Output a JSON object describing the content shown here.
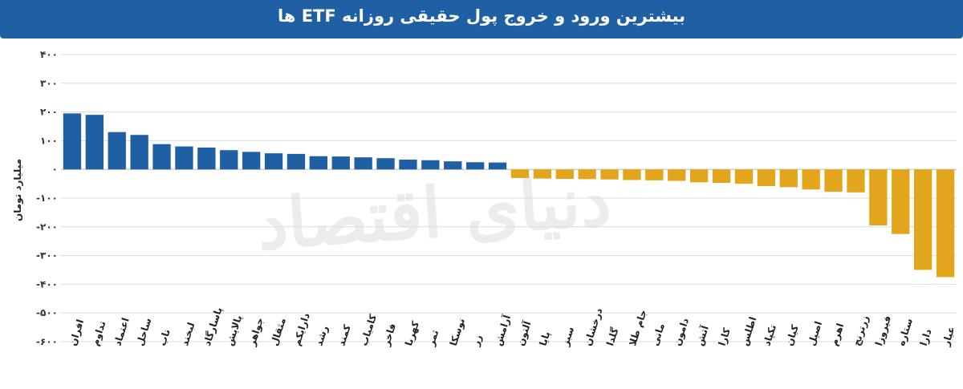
{
  "header": {
    "title": "بیشترین ورود و خروج پول حقیقی روزانه ETF ها"
  },
  "watermark": "دنیای اقتصاد",
  "colors": {
    "header_bg": "#1f5fa3",
    "inflow": "#1f5fa3",
    "outflow": "#e2a51c"
  },
  "chart_data": {
    "type": "bar",
    "title": "بیشترین ورود و خروج پول حقیقی روزانه ETF ها",
    "ylabel": "میلیارد تومان",
    "xlabel": "",
    "ylim": [
      -600,
      400
    ],
    "yticks": [
      400,
      300,
      200,
      100,
      0,
      -100,
      -200,
      -300,
      -400,
      -500,
      -600
    ],
    "ytick_labels": [
      "۴۰۰",
      "۳۰۰",
      "۲۰۰",
      "۱۰۰",
      "۰",
      "-۱۰۰",
      "-۲۰۰",
      "-۳۰۰",
      "-۴۰۰",
      "-۵۰۰",
      "-۶۰۰"
    ],
    "grid": true,
    "categories": [
      "افران",
      "تداوم",
      "اعتماد",
      "ساحل",
      "ناب",
      "لبخند",
      "پاسارگاد",
      "پالایش",
      "جواهر",
      "مثقال",
      "دارایکم",
      "رشد",
      "کمند",
      "کامیاب",
      "فاخر",
      "کهربا",
      "ثمر",
      "نوسکا",
      "زر",
      "آرامش",
      "آلتون",
      "پایا",
      "سبز",
      "درخشان",
      "گلدا",
      "جام طلا",
      "مانی",
      "دامون",
      "آتش",
      "کارا",
      "اطلس",
      "تکپاد",
      "کیان",
      "اصیل",
      "اهرم",
      "زرترنج",
      "فیروزا",
      "ستاره",
      "دارا",
      "عیار"
    ],
    "values": [
      195,
      190,
      130,
      120,
      88,
      80,
      76,
      67,
      61,
      56,
      54,
      46,
      45,
      42,
      39,
      34,
      32,
      28,
      25,
      24,
      -30,
      -32,
      -33,
      -34,
      -35,
      -37,
      -38,
      -40,
      -45,
      -47,
      -50,
      -58,
      -62,
      -70,
      -78,
      -80,
      -195,
      -225,
      -350,
      -375
    ]
  }
}
